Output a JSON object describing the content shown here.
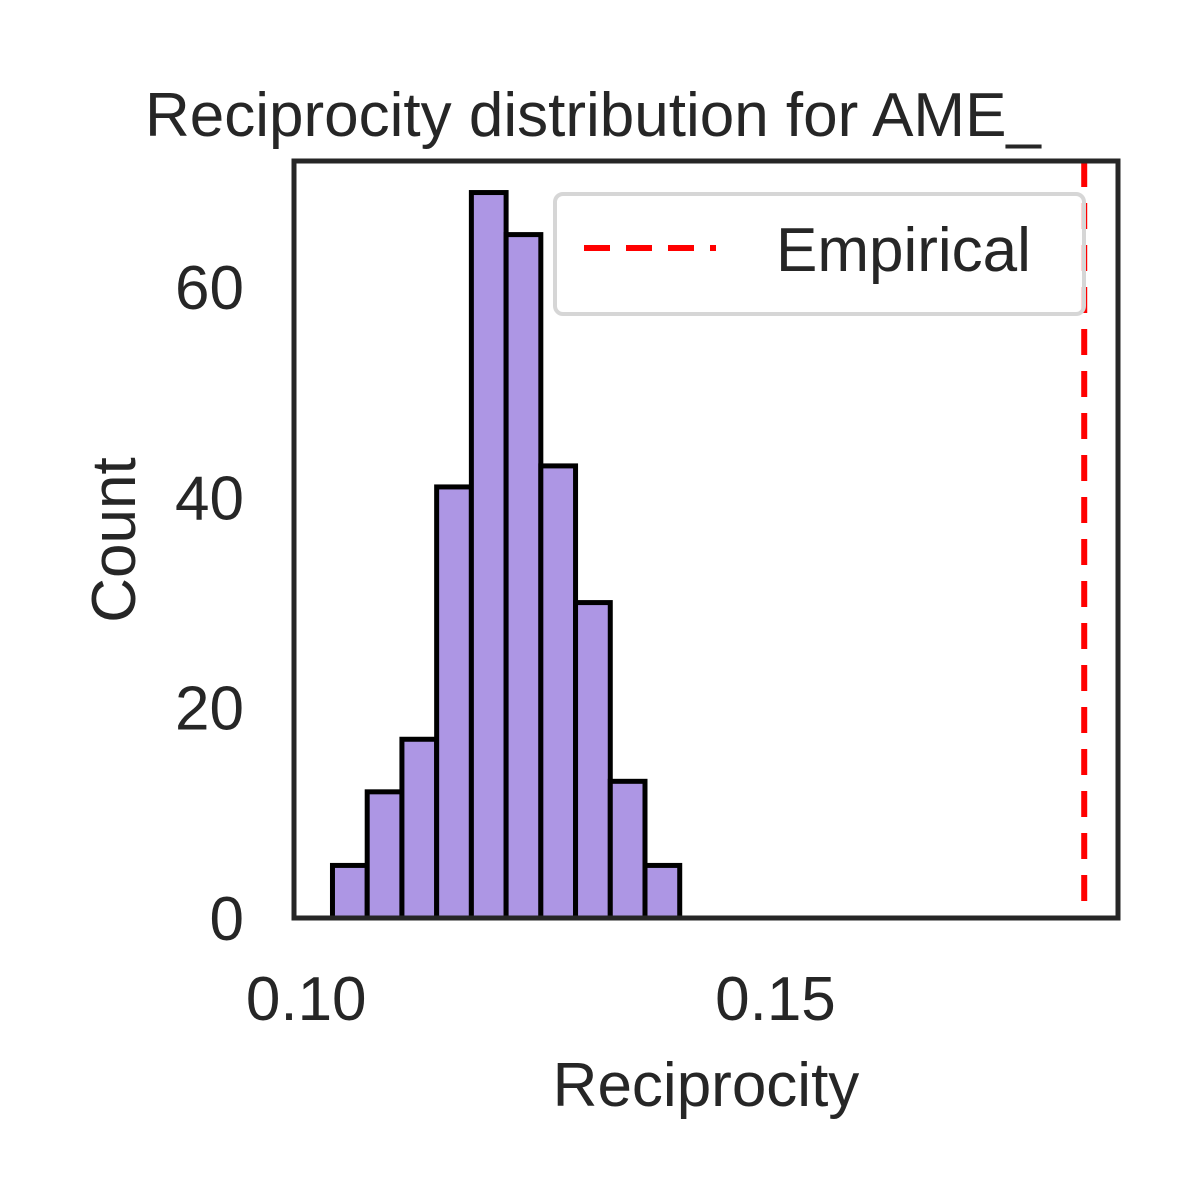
{
  "chart_data": {
    "type": "bar",
    "title": "Reciprocity distribution for AME_",
    "xlabel": "Reciprocity",
    "ylabel": "Count",
    "xlim": [
      0.0987,
      0.1865
    ],
    "ylim": [
      0,
      72
    ],
    "xticks": [
      {
        "value": 0.1,
        "label": "0.10"
      },
      {
        "value": 0.15,
        "label": "0.15"
      }
    ],
    "yticks": [
      {
        "value": 0,
        "label": "0"
      },
      {
        "value": 20,
        "label": "20"
      },
      {
        "value": 40,
        "label": "40"
      },
      {
        "value": 60,
        "label": "60"
      }
    ],
    "bins": [
      {
        "x0": 0.1028,
        "x1": 0.1065,
        "count": 5
      },
      {
        "x0": 0.1065,
        "x1": 0.1102,
        "count": 12
      },
      {
        "x0": 0.1102,
        "x1": 0.1139,
        "count": 17
      },
      {
        "x0": 0.1139,
        "x1": 0.1176,
        "count": 41
      },
      {
        "x0": 0.1176,
        "x1": 0.1213,
        "count": 69
      },
      {
        "x0": 0.1213,
        "x1": 0.125,
        "count": 65
      },
      {
        "x0": 0.125,
        "x1": 0.1287,
        "count": 43
      },
      {
        "x0": 0.1287,
        "x1": 0.1324,
        "count": 30
      },
      {
        "x0": 0.1324,
        "x1": 0.1361,
        "count": 13
      },
      {
        "x0": 0.1361,
        "x1": 0.1398,
        "count": 5
      }
    ],
    "empirical_value": 0.1829,
    "legend": {
      "label": "Empirical",
      "placement": "top-right"
    },
    "grid": false,
    "colors": {
      "bar_fill": "#ad96e4",
      "bar_edge": "#000000",
      "empirical_line": "#ff0000",
      "axes": "#262626"
    }
  }
}
